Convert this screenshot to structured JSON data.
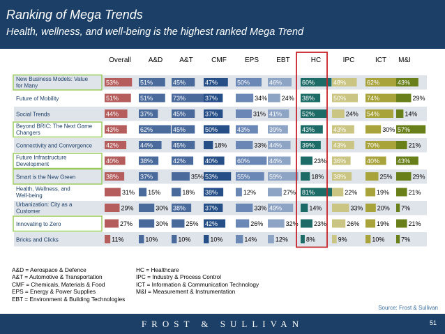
{
  "header": {
    "title": "Ranking of Mega Trends",
    "subtitle": "Health, wellness, and well-being is the highest ranked Mega Trend"
  },
  "chart_data": {
    "type": "table",
    "columns": [
      "Overall",
      "A&D",
      "A&T",
      "CMF",
      "EPS",
      "EBT",
      "HC",
      "IPC",
      "ICT",
      "M&I"
    ],
    "rows": [
      {
        "label": "New Business Models: Value for Many",
        "values": [
          53,
          51,
          45,
          47,
          50,
          46,
          60,
          48,
          62,
          43
        ],
        "highlighted": true
      },
      {
        "label": "Future of Mobility",
        "values": [
          51,
          51,
          73,
          37,
          34,
          24,
          38,
          50,
          74,
          29
        ],
        "highlighted": false
      },
      {
        "label": "Social Trends",
        "values": [
          44,
          37,
          45,
          37,
          31,
          41,
          52,
          24,
          54,
          14
        ],
        "highlighted": false
      },
      {
        "label": "Beyond BRIC: The Next Game Changers",
        "values": [
          43,
          62,
          45,
          50,
          43,
          39,
          43,
          43,
          30,
          57
        ],
        "highlighted": true
      },
      {
        "label": "Connectivity and Convergence",
        "values": [
          42,
          44,
          45,
          18,
          33,
          44,
          39,
          43,
          70,
          21
        ],
        "highlighted": false
      },
      {
        "label": "Future Infrastructure Development",
        "values": [
          40,
          38,
          42,
          40,
          60,
          44,
          23,
          36,
          40,
          43
        ],
        "highlighted": true
      },
      {
        "label": "Smart is the New Green",
        "values": [
          38,
          37,
          35,
          53,
          55,
          59,
          18,
          38,
          25,
          29
        ],
        "highlighted": true
      },
      {
        "label": "Health, Wellness, and Well-being",
        "values": [
          31,
          15,
          18,
          38,
          12,
          27,
          81,
          22,
          19,
          21
        ],
        "highlighted": false
      },
      {
        "label": "Urbanization: City as a Customer",
        "values": [
          29,
          30,
          38,
          37,
          33,
          49,
          14,
          33,
          20,
          7
        ],
        "highlighted": false
      },
      {
        "label": "Innovating to Zero",
        "values": [
          27,
          30,
          25,
          42,
          26,
          32,
          23,
          26,
          19,
          21
        ],
        "highlighted": true
      },
      {
        "label": "Bricks and Clicks",
        "values": [
          11,
          10,
          10,
          10,
          14,
          12,
          8,
          9,
          10,
          7
        ],
        "highlighted": false
      }
    ],
    "value_suffix": "%",
    "highlighted_column": "HC"
  },
  "colors": {
    "header_bg": "#1b3f66",
    "row_band": "#dfe3ea",
    "row_band_alt": "#ffffff",
    "highlight_border": "#9ccb5e",
    "hc_column_border": "#c8232c",
    "column_colors": [
      "#b55c5c",
      "#4a6a9c",
      "#4a6a9c",
      "#274f87",
      "#6a87b5",
      "#8ea4c4",
      "#1c6b66",
      "#cbc583",
      "#a8a33a",
      "#69801a"
    ]
  },
  "legend": {
    "left": [
      "A&D = Aerospace & Defence",
      "A&T = Automotive & Transportation",
      "CMF = Chemicals, Materials & Food",
      "EPS = Energy & Power Supplies",
      "EBT = Environment & Building Technologies"
    ],
    "right": [
      "HC = Healthcare",
      "IPC = Industry & Process Control",
      "ICT = Information & Communication Technology",
      "M&I = Measurement & Instrumentation"
    ]
  },
  "source": "Source: Frost & Sullivan",
  "footer": {
    "logo": "FROST & SULLIVAN",
    "page_number": "51"
  }
}
